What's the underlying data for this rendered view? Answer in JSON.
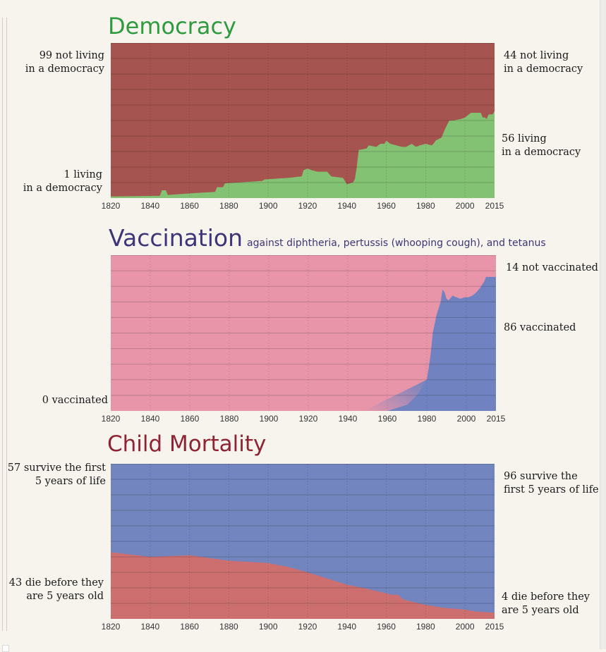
{
  "chart_data": [
    {
      "type": "area",
      "id": "democracy",
      "title": "Democracy",
      "subtitle": "",
      "xlabel": "",
      "ylabel": "",
      "xlim": [
        1820,
        2015
      ],
      "ylim": [
        0,
        100
      ],
      "grid": true,
      "x_ticks": [
        "1820",
        "1840",
        "1860",
        "1880",
        "1900",
        "1920",
        "1940",
        "1960",
        "1980",
        "2000",
        "2015"
      ],
      "colors": {
        "top": "#a6544f",
        "bottom": "#83c173",
        "title": "#2f9b3f"
      },
      "series": [
        {
          "name": "living in a democracy",
          "position": "bottom",
          "x": [
            1820,
            1845,
            1846,
            1848,
            1849,
            1860,
            1873,
            1874,
            1877,
            1878,
            1897,
            1898,
            1910,
            1917,
            1918,
            1920,
            1922,
            1925,
            1930,
            1932,
            1938,
            1940,
            1943,
            1944,
            1945,
            1946,
            1950,
            1951,
            1955,
            1957,
            1959,
            1960,
            1962,
            1968,
            1970,
            1973,
            1975,
            1977,
            1980,
            1983,
            1984,
            1985,
            1988,
            1990,
            1992,
            1994,
            1998,
            2000,
            2003,
            2008,
            2009,
            2010,
            2011,
            2012,
            2013,
            2014,
            2015
          ],
          "values": [
            1,
            1.5,
            5,
            5,
            2,
            3,
            4,
            7,
            7,
            9.5,
            11,
            12,
            13,
            14,
            18,
            19,
            18,
            17,
            17,
            14,
            13,
            9,
            10,
            12,
            20,
            31,
            32,
            34,
            33,
            35,
            35,
            37,
            35,
            33,
            33,
            35,
            33,
            34,
            35,
            34,
            35,
            37,
            39,
            45,
            50,
            50,
            51,
            52,
            55,
            55,
            52,
            52,
            51,
            54,
            54,
            54,
            56
          ]
        },
        {
          "name": "not living in a democracy",
          "position": "top",
          "values_note": "remainder to 100"
        }
      ],
      "annotations": {
        "left_top": [
          "99 not living",
          "in a democracy"
        ],
        "left_bottom": [
          "1 living",
          "in a democracy"
        ],
        "right_top": [
          "44 not living",
          "in a democracy"
        ],
        "right_bottom": [
          "56 living",
          "in a democracy"
        ]
      }
    },
    {
      "type": "area",
      "id": "vaccination",
      "title": "Vaccination",
      "subtitle": "against diphtheria, pertussis (whooping cough), and tetanus",
      "xlabel": "",
      "ylabel": "",
      "xlim": [
        1820,
        2015
      ],
      "ylim": [
        0,
        100
      ],
      "grid": true,
      "x_ticks": [
        "1820",
        "1840",
        "1860",
        "1880",
        "1900",
        "1920",
        "1940",
        "1960",
        "1980",
        "2000",
        "2015"
      ],
      "colors": {
        "top": "#e895aa",
        "bottom": "#7083c0",
        "title": "#3d3578"
      },
      "series": [
        {
          "name": "vaccinated",
          "position": "bottom",
          "x": [
            1820,
            1950,
            1960,
            1970,
            1975,
            1980,
            1981,
            1982,
            1983,
            1985,
            1987,
            1988,
            1989,
            1990,
            1991,
            1993,
            1995,
            1997,
            1999,
            2001,
            2003,
            2005,
            2007,
            2009,
            2010,
            2012,
            2015
          ],
          "values": [
            0,
            0,
            0,
            4,
            10,
            20,
            28,
            37,
            50,
            62,
            70,
            78,
            76,
            72,
            71,
            74,
            73,
            72,
            73,
            73,
            74,
            76,
            79,
            83,
            86,
            86,
            86
          ]
        },
        {
          "name": "not vaccinated",
          "position": "top",
          "values_note": "remainder to 100"
        }
      ],
      "annotations": {
        "left_bottom": [
          "0 vaccinated"
        ],
        "right_top": [
          "14 not vaccinated"
        ],
        "right_bottom": [
          "86 vaccinated"
        ]
      }
    },
    {
      "type": "area",
      "id": "child-mortality",
      "title": "Child Mortality",
      "subtitle": "",
      "xlabel": "",
      "ylabel": "",
      "xlim": [
        1820,
        2015
      ],
      "ylim": [
        0,
        100
      ],
      "grid": true,
      "x_ticks": [
        "1820",
        "1840",
        "1860",
        "1880",
        "1900",
        "1920",
        "1940",
        "1960",
        "1980",
        "2000",
        "2015"
      ],
      "colors": {
        "top": "#7285bf",
        "bottom": "#cd6e6f",
        "title": "#8e2333"
      },
      "series": [
        {
          "name": "die before they are 5 years old",
          "position": "bottom",
          "x": [
            1820,
            1840,
            1860,
            1880,
            1900,
            1910,
            1920,
            1930,
            1940,
            1950,
            1960,
            1963,
            1966,
            1968,
            1970,
            1980,
            1990,
            2000,
            2005,
            2015
          ],
          "values": [
            43,
            40,
            41,
            37.5,
            36,
            33.5,
            30,
            26,
            22,
            19.5,
            16.5,
            15.5,
            15.5,
            13,
            12,
            9,
            7,
            6,
            4.8,
            4
          ]
        },
        {
          "name": "survive the first 5 years of life",
          "position": "top",
          "values_note": "remainder to 100"
        }
      ],
      "annotations": {
        "left_top": [
          "57 survive the first",
          "5 years of life"
        ],
        "left_bottom": [
          "43 die before they",
          "are 5 years old"
        ],
        "right_top": [
          "96 survive the",
          "first 5 years of life"
        ],
        "right_bottom": [
          "4 die before they",
          "are 5 years old"
        ]
      }
    }
  ],
  "titles": {
    "democracy": "Democracy",
    "vaccination": "Vaccination",
    "vaccination_sub": "against diphtheria, pertussis (whooping cough), and tetanus",
    "child_mortality": "Child Mortality"
  }
}
